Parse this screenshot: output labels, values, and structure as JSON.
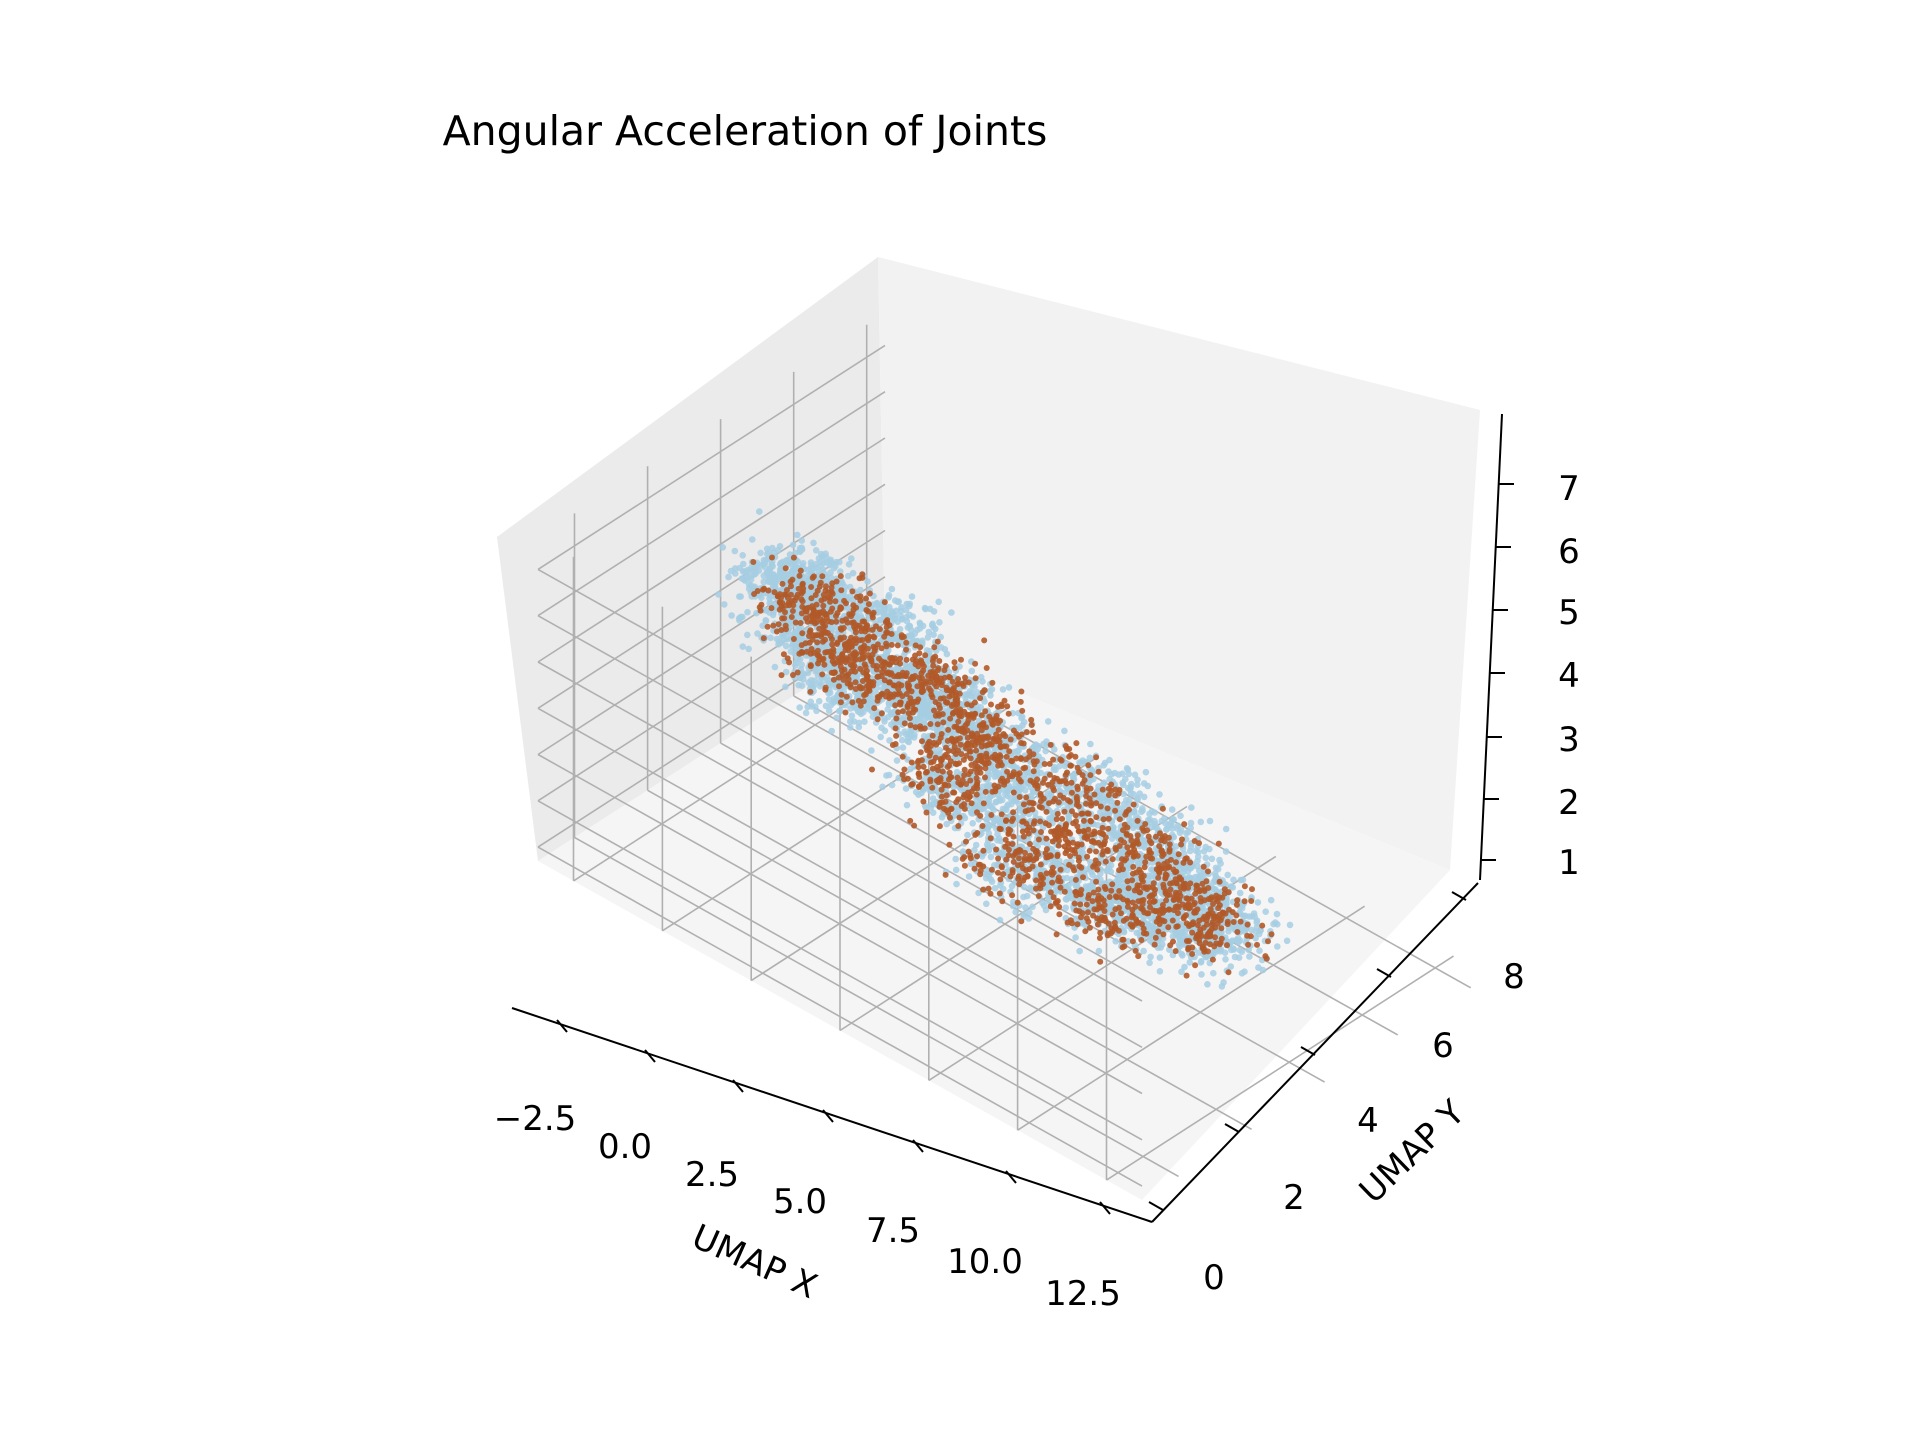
{
  "chart_data": {
    "type": "scatter",
    "projection": "3d",
    "title": "Angular Acceleration of Joints",
    "xlabel": "UMAP X",
    "ylabel": "UMAP Y",
    "zlabel": "",
    "xlim": [
      -3.5,
      13.5
    ],
    "ylim": [
      -0.5,
      9
    ],
    "zlim": [
      0.7,
      7.7
    ],
    "xticks": [
      "−2.5",
      "0.0",
      "2.5",
      "5.0",
      "7.5",
      "10.0",
      "12.5"
    ],
    "yticks": [
      "0",
      "2",
      "4",
      "6",
      "8"
    ],
    "zticks": [
      "1",
      "2",
      "3",
      "4",
      "5",
      "6",
      "7"
    ],
    "grid": true,
    "legend": "none",
    "series": [
      {
        "color": "#a6cee3",
        "approx_point_count": 9000,
        "values": [
          [
            0.5,
            6.0,
            6.9
          ],
          [
            1.5,
            6.5,
            6.6
          ],
          [
            3.0,
            6.8,
            6.2
          ],
          [
            0.0,
            5.0,
            6.0
          ],
          [
            1.0,
            4.0,
            5.2
          ],
          [
            3.0,
            4.5,
            5.0
          ],
          [
            5.0,
            6.0,
            4.4
          ],
          [
            7.5,
            6.5,
            4.0
          ],
          [
            9.5,
            6.0,
            3.8
          ],
          [
            10.5,
            5.0,
            3.2
          ],
          [
            10.0,
            3.5,
            2.4
          ],
          [
            8.0,
            2.5,
            1.8
          ],
          [
            6.0,
            1.5,
            1.4
          ],
          [
            4.0,
            1.0,
            1.3
          ],
          [
            2.0,
            1.5,
            1.6
          ],
          [
            0.0,
            2.5,
            2.4
          ],
          [
            -0.5,
            3.5,
            3.5
          ],
          [
            2.0,
            3.0,
            3.0
          ],
          [
            5.0,
            4.0,
            3.0
          ],
          [
            8.0,
            4.5,
            2.8
          ]
        ]
      },
      {
        "color": "#b15928",
        "approx_point_count": 4000,
        "values": [
          [
            0.8,
            5.8,
            6.5
          ],
          [
            2.0,
            6.2,
            6.1
          ],
          [
            0.5,
            4.5,
            5.3
          ],
          [
            2.5,
            4.0,
            4.6
          ],
          [
            4.5,
            5.5,
            4.0
          ],
          [
            7.0,
            6.0,
            3.6
          ],
          [
            9.0,
            5.5,
            3.2
          ],
          [
            10.0,
            4.0,
            2.6
          ],
          [
            8.5,
            3.0,
            2.0
          ],
          [
            6.5,
            2.0,
            1.6
          ],
          [
            4.0,
            1.5,
            1.6
          ],
          [
            1.5,
            2.0,
            2.2
          ],
          [
            0.0,
            3.0,
            3.0
          ],
          [
            3.5,
            3.5,
            3.2
          ],
          [
            6.0,
            4.0,
            2.9
          ]
        ]
      }
    ]
  }
}
